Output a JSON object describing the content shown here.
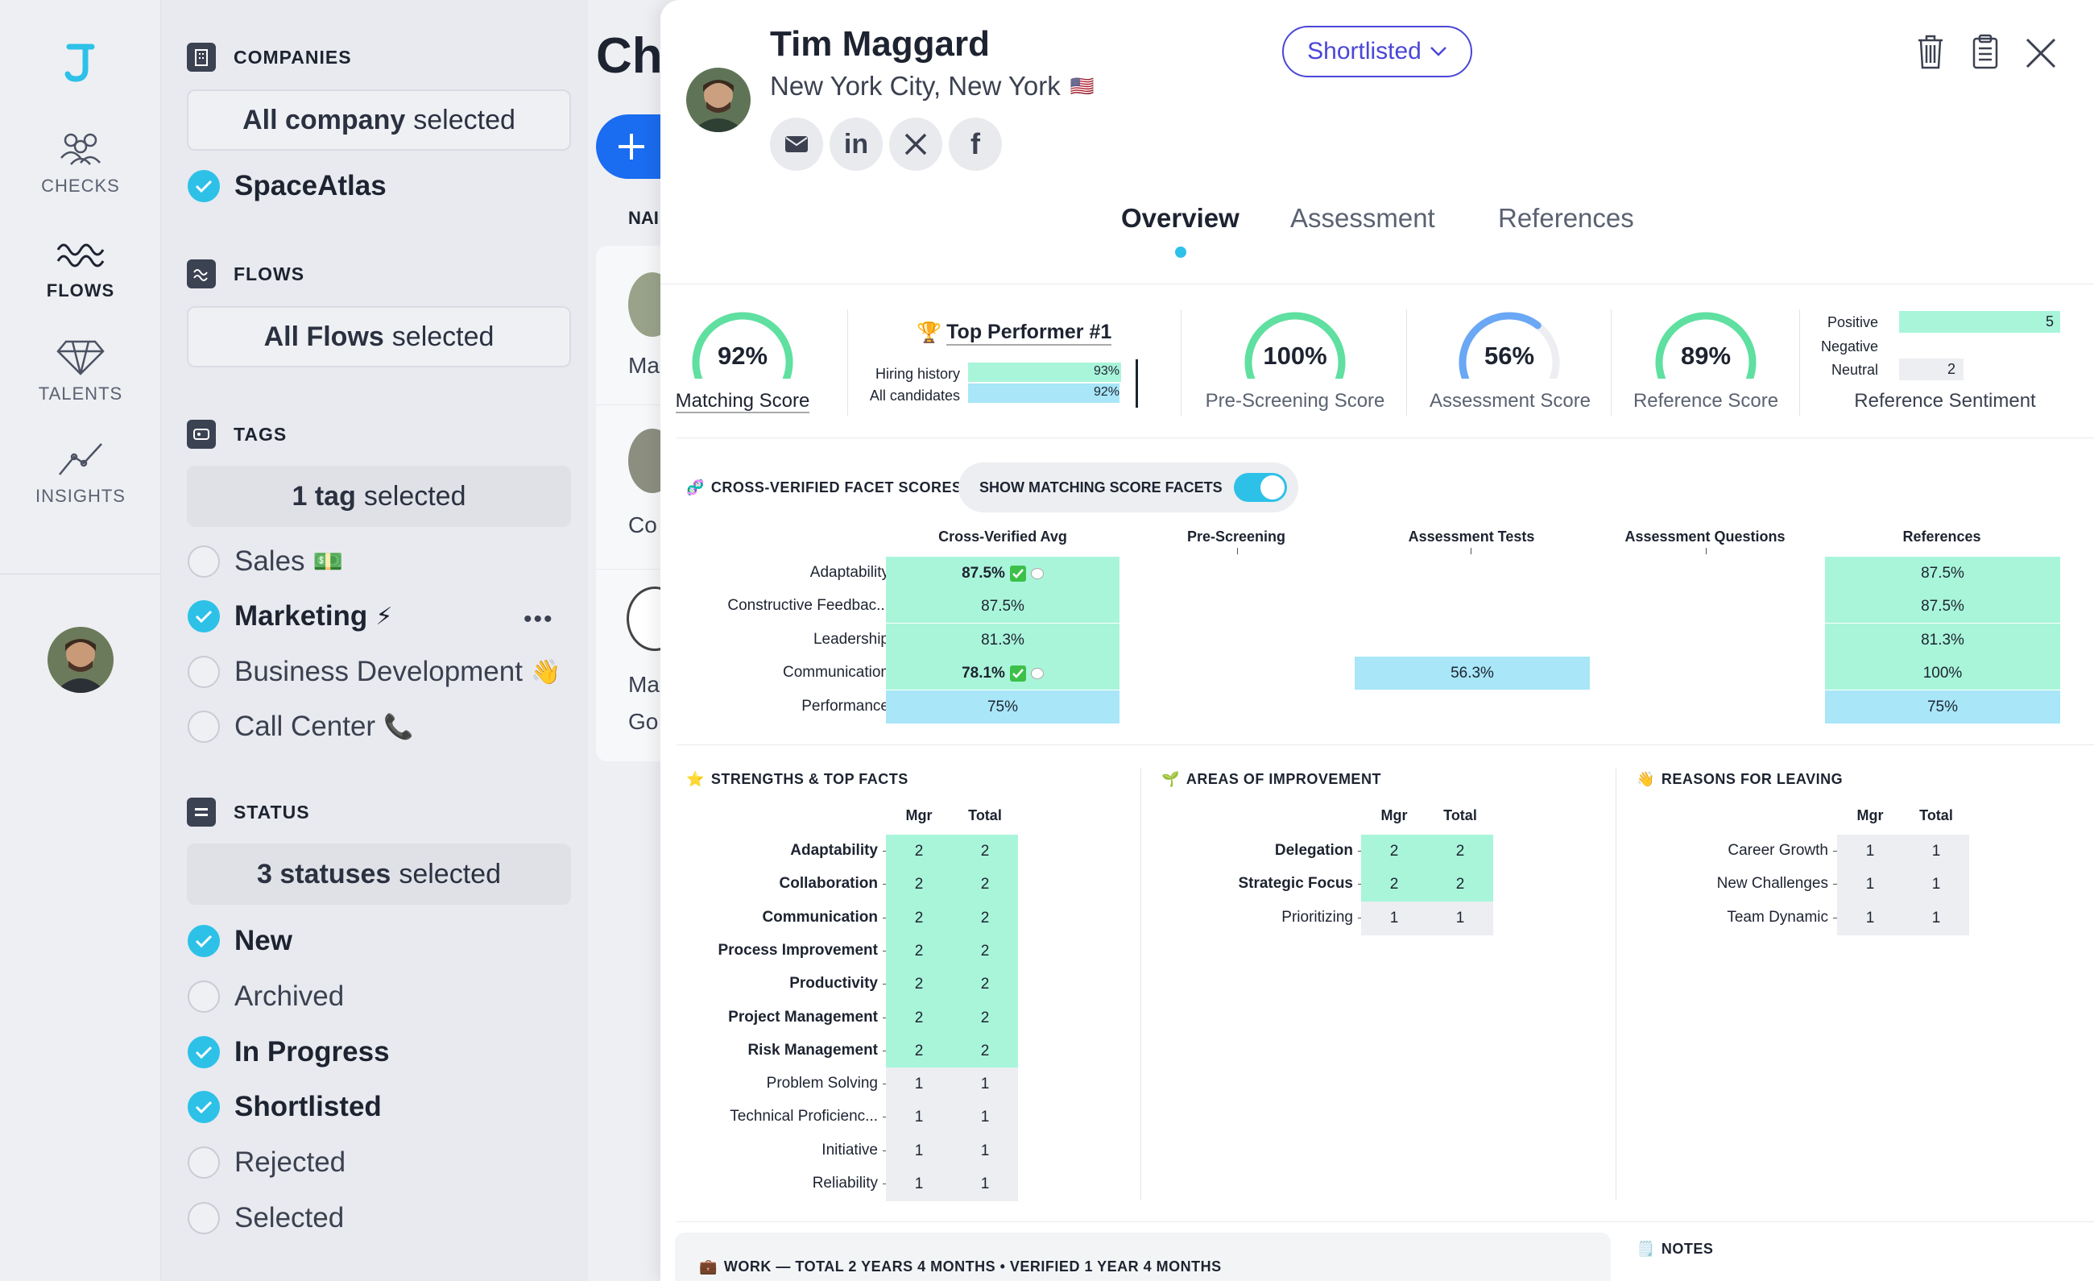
{
  "rail": {
    "items": [
      {
        "label": "CHECKS",
        "icon": "users-icon"
      },
      {
        "label": "FLOWS",
        "icon": "waves-icon"
      },
      {
        "label": "TALENTS",
        "icon": "diamond-icon"
      },
      {
        "label": "INSIGHTS",
        "icon": "trend-icon"
      }
    ]
  },
  "filters": {
    "companies": {
      "title": "COMPANIES",
      "selected_bold": "All company",
      "selected_rest": "selected",
      "options": [
        {
          "label": "SpaceAtlas",
          "checked": true
        }
      ]
    },
    "flows": {
      "title": "FLOWS",
      "selected_bold": "All Flows",
      "selected_rest": "selected"
    },
    "tags": {
      "title": "TAGS",
      "selected_bold": "1 tag",
      "selected_rest": "selected",
      "options": [
        {
          "label": "Sales",
          "emoji": "💵",
          "checked": false
        },
        {
          "label": "Marketing",
          "emoji": "⚡",
          "checked": true
        },
        {
          "label": "Business Development",
          "emoji": "👋",
          "checked": false
        },
        {
          "label": "Call Center",
          "emoji": "📞",
          "checked": false
        }
      ],
      "more": "•••"
    },
    "status": {
      "title": "STATUS",
      "selected_bold": "3 statuses",
      "selected_rest": "selected",
      "options": [
        {
          "label": "New",
          "checked": true
        },
        {
          "label": "Archived",
          "checked": false
        },
        {
          "label": "In Progress",
          "checked": true
        },
        {
          "label": "Shortlisted",
          "checked": true
        },
        {
          "label": "Rejected",
          "checked": false
        },
        {
          "label": "Selected",
          "checked": false
        }
      ]
    }
  },
  "list": {
    "heading": "Ch",
    "col": "NAI",
    "rows": [
      "Ma",
      "Co",
      "Ma",
      "Go"
    ]
  },
  "profile": {
    "name": "Tim Maggard",
    "location": "New York City, New York",
    "flag": "🇺🇸",
    "status_button": "Shortlisted",
    "tabs": [
      "Overview",
      "Assessment",
      "References"
    ],
    "active_tab": "Overview"
  },
  "scores": {
    "matching": {
      "value": "92%",
      "label": "Matching Score",
      "fraction": 0.92
    },
    "top_performer": {
      "title": "Top Performer #1",
      "rows": [
        {
          "label": "Hiring history",
          "value": "93%"
        },
        {
          "label": "All candidates",
          "value": "92%"
        }
      ]
    },
    "prescreening": {
      "value": "100%",
      "label": "Pre-Screening Score",
      "fraction": 1.0
    },
    "assessment": {
      "value": "56%",
      "label": "Assessment Score",
      "fraction": 0.56
    },
    "reference": {
      "value": "89%",
      "label": "Reference Score",
      "fraction": 0.89
    },
    "sentiment": {
      "label": "Reference Sentiment",
      "rows": [
        {
          "label": "Positive",
          "value": "5"
        },
        {
          "label": "Negative",
          "value": ""
        },
        {
          "label": "Neutral",
          "value": "2"
        }
      ]
    }
  },
  "facets": {
    "title": "CROSS-VERIFIED FACET SCORES",
    "toggle_label": "SHOW MATCHING SCORE FACETS",
    "columns": [
      "Cross-Verified Avg",
      "Pre-Screening",
      "Assessment Tests",
      "Assessment Questions",
      "References"
    ],
    "rows": [
      {
        "label": "Adaptability",
        "avg": "87.5%",
        "assess": "",
        "refs": "87.5%"
      },
      {
        "label": "Constructive Feedbac...",
        "avg": "87.5%",
        "assess": "",
        "refs": "87.5%"
      },
      {
        "label": "Leadership",
        "avg": "81.3%",
        "assess": "",
        "refs": "81.3%"
      },
      {
        "label": "Communication",
        "avg": "78.1%",
        "assess": "56.3%",
        "refs": "100%"
      },
      {
        "label": "Performance",
        "avg": "75%",
        "assess": "",
        "refs": "75%"
      }
    ]
  },
  "strengths": {
    "title": "STRENGTHS & TOP FACTS",
    "cols": [
      "Mgr",
      "Total"
    ],
    "rows": [
      {
        "label": "Adaptability",
        "mgr": "2",
        "total": "2"
      },
      {
        "label": "Collaboration",
        "mgr": "2",
        "total": "2"
      },
      {
        "label": "Communication",
        "mgr": "2",
        "total": "2"
      },
      {
        "label": "Process Improvement",
        "mgr": "2",
        "total": "2"
      },
      {
        "label": "Productivity",
        "mgr": "2",
        "total": "2"
      },
      {
        "label": "Project Management",
        "mgr": "2",
        "total": "2"
      },
      {
        "label": "Risk Management",
        "mgr": "2",
        "total": "2"
      },
      {
        "label": "Problem Solving",
        "mgr": "1",
        "total": "1"
      },
      {
        "label": "Technical Proficienc...",
        "mgr": "1",
        "total": "1"
      },
      {
        "label": "Initiative",
        "mgr": "1",
        "total": "1"
      },
      {
        "label": "Reliability",
        "mgr": "1",
        "total": "1"
      }
    ]
  },
  "improvement": {
    "title": "AREAS OF IMPROVEMENT",
    "cols": [
      "Mgr",
      "Total"
    ],
    "rows": [
      {
        "label": "Delegation",
        "mgr": "2",
        "total": "2"
      },
      {
        "label": "Strategic Focus",
        "mgr": "2",
        "total": "2"
      },
      {
        "label": "Prioritizing",
        "mgr": "1",
        "total": "1"
      }
    ]
  },
  "leaving": {
    "title": "REASONS FOR LEAVING",
    "cols": [
      "Mgr",
      "Total"
    ],
    "rows": [
      {
        "label": "Career Growth",
        "mgr": "1",
        "total": "1"
      },
      {
        "label": "New Challenges",
        "mgr": "1",
        "total": "1"
      },
      {
        "label": "Team Dynamic",
        "mgr": "1",
        "total": "1"
      }
    ]
  },
  "work": {
    "title": "WORK — TOTAL 2 YEARS 4 MONTHS • VERIFIED 1 YEAR 4 MONTHS"
  },
  "notes": {
    "title": "NOTES"
  },
  "colors": {
    "accent": "#2ec1e8",
    "primary": "#1a6cf0",
    "green_cell": "#a9f5da",
    "blue_cell": "#a8e6f8",
    "status": "#4a46d8"
  }
}
